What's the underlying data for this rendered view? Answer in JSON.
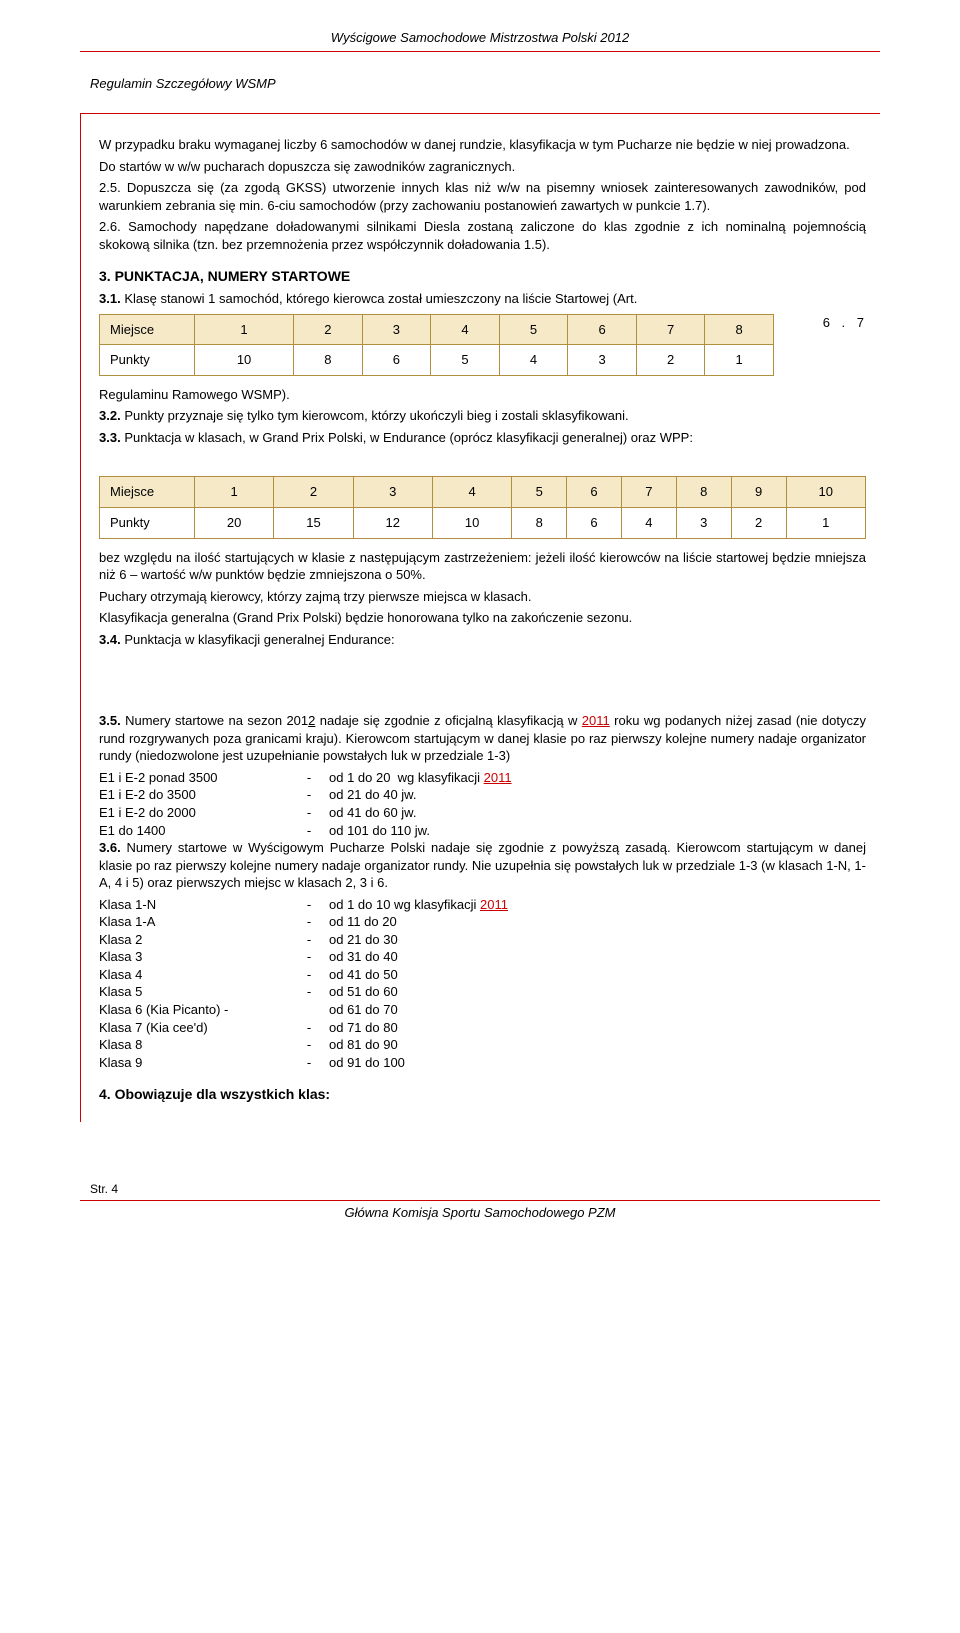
{
  "header": {
    "title": "Wyścigowe Samochodowe Mistrzostwa Polski 2012"
  },
  "subtitle": "Regulamin Szczegółowy WSMP",
  "p1": "W przypadku braku wymaganej liczby 6 samochodów w danej rundzie, klasyfikacja w tym Pucharze nie będzie w niej prowadzona.",
  "p2": "Do startów w w/w pucharach dopuszcza się zawodników zagranicznych.",
  "p3": "2.5. Dopuszcza się (za zgodą GKSS) utworzenie innych klas niż w/w na pisemny wniosek zainteresowanych zawodników, pod warunkiem zebrania się min. 6-ciu samochodów (przy zachowaniu postanowień zawartych w punkcie 1.7).",
  "p4": "2.6. Samochody napędzane doładowanymi silnikami Diesla zostaną zaliczone do klas zgodnie z ich nominalną pojemnością skokową silnika (tzn. bez przemnożenia przez współczynnik doładowania 1.5).",
  "sec3": "3. PUNKTACJA, NUMERY STARTOWE",
  "p31": "3.1. Klasę stanowi 1 samochód, którego kierowca został umieszczony na liście Startowej (Art.",
  "side67": "6 . 7",
  "t1": {
    "hdr": [
      "Miejsce",
      "1",
      "2",
      "3",
      "4",
      "5",
      "6",
      "7",
      "8"
    ],
    "row": [
      "Punkty",
      "10",
      "8",
      "6",
      "5",
      "4",
      "3",
      "2",
      "1"
    ]
  },
  "afterT1a": "Regulaminu Ramowego WSMP).",
  "p32": "3.2. Punkty przyznaje się tylko tym kierowcom, którzy ukończyli bieg i zostali sklasyfikowani.",
  "p33": "3.3. Punktacja w klasach, w Grand Prix Polski, w Endurance (oprócz klasyfikacji generalnej) oraz WPP:",
  "t2": {
    "hdr": [
      "Miejsce",
      "1",
      "2",
      "3",
      "4",
      "5",
      "6",
      "7",
      "8",
      "9",
      "10"
    ],
    "row": [
      "Punkty",
      "20",
      "15",
      "12",
      "10",
      "8",
      "6",
      "4",
      "3",
      "2",
      "1"
    ]
  },
  "afterT2a": "bez względu na ilość startujących w klasie z następującym zastrzeżeniem: jeżeli ilość kierowców na liście startowej będzie mniejsza niż 6 – wartość w/w punktów będzie zmniejszona o 50%.",
  "afterT2b": "Puchary otrzymają kierowcy, którzy zajmą trzy pierwsze miejsca w klasach.",
  "afterT2c": "Klasyfikacja generalna (Grand Prix Polski) będzie honorowana tylko na zakończenie sezonu.",
  "p34": "3.4. Punktacja w klasyfikacji generalnej Endurance:",
  "p35a": "3.5. Numery startowe na sezon 2012 nadaje się zgodnie z oficjalną klasyfikacją w ",
  "p35link1": "2011",
  "p35b": " roku wg podanych niżej zasad (nie dotyczy rund rozgrywanych poza granicami kraju). Kierowcom startującym w danej klasie po raz pierwszy kolejne numery nadaje organizator rundy (niedozwolone jest uzupełnianie powstałych luk w przedziale 1-3)",
  "list35": [
    {
      "a": "E1 i E-2 ponad 3500",
      "b": "-",
      "c": "od 1 do 20  wg klasyfikacji ",
      "link": "2011"
    },
    {
      "a": "E1 i E-2 do 3500",
      "b": "-",
      "c": "od 21 do 40 jw."
    },
    {
      "a": "E1 i E-2 do 2000",
      "b": "-",
      "c": "od 41 do 60 jw."
    },
    {
      "a": "E1 do 1400",
      "b": "-",
      "c": "od 101 do 110 jw."
    }
  ],
  "p36": "3.6. Numery startowe w Wyścigowym Pucharze Polski nadaje się zgodnie z powyższą zasadą. Kierowcom startującym w danej klasie po raz pierwszy kolejne numery nadaje organizator rundy. Nie uzupełnia się powstałych luk w przedziale 1-3 (w klasach 1-N, 1-A, 4 i 5) oraz pierwszych miejsc w klasach 2, 3 i 6.",
  "list36": [
    {
      "a": "Klasa 1-N",
      "b": "-",
      "c": "od 1 do 10 wg klasyfikacji ",
      "link": "2011"
    },
    {
      "a": "Klasa 1-A",
      "b": "-",
      "c": "od 11 do 20"
    },
    {
      "a": "Klasa 2",
      "b": "-",
      "c": "od 21 do 30"
    },
    {
      "a": "Klasa 3",
      "b": "-",
      "c": "od 31 do 40"
    },
    {
      "a": "Klasa 4",
      "b": "-",
      "c": "od 41 do 50"
    },
    {
      "a": "Klasa 5",
      "b": "-",
      "c": "od 51 do 60"
    },
    {
      "a": "Klasa 6 (Kia Picanto) -",
      "b": "",
      "c": "od 61 do 70"
    },
    {
      "a": "Klasa 7 (Kia cee'd)",
      "b": "-",
      "c": "od 71 do 80"
    },
    {
      "a": "Klasa 8",
      "b": "-",
      "c": "od 81 do 90"
    },
    {
      "a": "Klasa 9",
      "b": "-",
      "c": "od 91 do 100"
    }
  ],
  "sec4": "4. Obowiązuje dla wszystkich klas:",
  "footer": {
    "page": "Str. 4",
    "org": "Główna Komisja Sportu Samochodowego PZM"
  },
  "colors": {
    "red": "#cc0000",
    "tableBorder": "#b08f3e",
    "tableHdrBg": "#f5e9c8",
    "link": "#cc0000"
  }
}
